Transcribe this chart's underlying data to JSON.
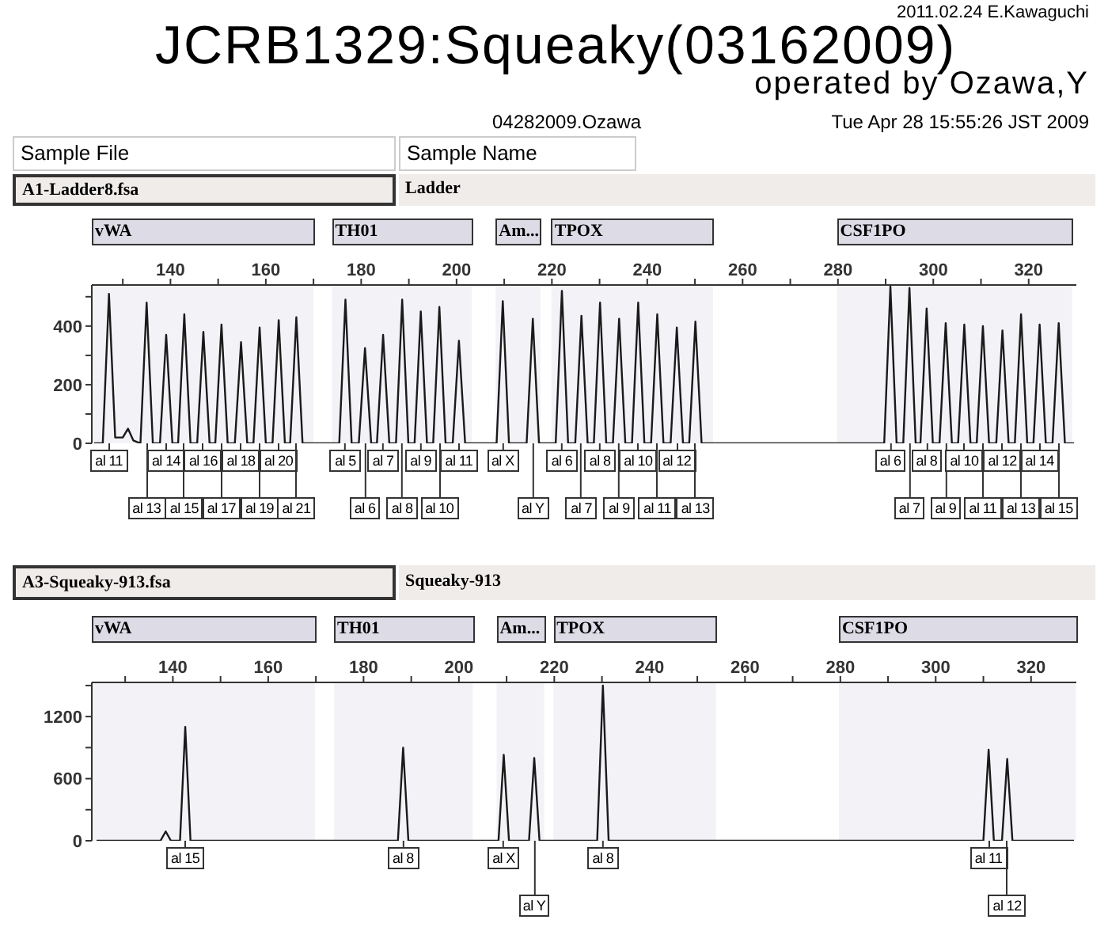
{
  "chart_data": [
    {
      "type": "line",
      "title": "JCRB1329:Squeaky(03162009)",
      "subtitle": "operated by Ozawa,Y",
      "annotations": [
        "2011.02.24 E.Kawaguchi",
        "04282009.Ozawa",
        "Tue Apr 28 15:55:26 JST 2009",
        "Sample File",
        "Sample Name",
        "A1-Ladder8.fsa",
        "Ladder",
        {
          "text": "al 11",
          "x": 127.1,
          "y": 0
        },
        {
          "text": "al 13",
          "x": 135.0,
          "y": 0
        },
        {
          "text": "al 14",
          "x": 139.1,
          "y": 0
        },
        {
          "text": "al 15",
          "x": 142.9,
          "y": 0
        },
        {
          "text": "al 16",
          "x": 146.9,
          "y": 0
        },
        {
          "text": "al 17",
          "x": 150.7,
          "y": 0
        },
        {
          "text": "al 18",
          "x": 154.8,
          "y": 0
        },
        {
          "text": "al 19",
          "x": 158.7,
          "y": 0
        },
        {
          "text": "al 20",
          "x": 162.7,
          "y": 0
        },
        {
          "text": "al 21",
          "x": 166.4,
          "y": 0
        },
        {
          "text": "al 5",
          "x": 176.7,
          "y": 0
        },
        {
          "text": "al 6",
          "x": 180.8,
          "y": 0
        },
        {
          "text": "al 7",
          "x": 184.6,
          "y": 0
        },
        {
          "text": "al 8",
          "x": 188.6,
          "y": 0
        },
        {
          "text": "al 9",
          "x": 192.5,
          "y": 0
        },
        {
          "text": "al 10",
          "x": 196.4,
          "y": 0
        },
        {
          "text": "al 11",
          "x": 200.5,
          "y": 0
        },
        {
          "text": "al X",
          "x": 209.7,
          "y": 0
        },
        {
          "text": "al Y",
          "x": 216.0,
          "y": 0
        },
        {
          "text": "al 6",
          "x": 222.1,
          "y": 0
        },
        {
          "text": "al 7",
          "x": 226.2,
          "y": 0
        },
        {
          "text": "al 8",
          "x": 230.1,
          "y": 0
        },
        {
          "text": "al 9",
          "x": 234.1,
          "y": 0
        },
        {
          "text": "al 10",
          "x": 238.1,
          "y": 0
        },
        {
          "text": "al 11",
          "x": 242.1,
          "y": 0
        },
        {
          "text": "al 12",
          "x": 246.2,
          "y": 0
        },
        {
          "text": "al 13",
          "x": 250.1,
          "y": 0
        },
        {
          "text": "al 6",
          "x": 291.0,
          "y": 0
        },
        {
          "text": "al 7",
          "x": 295.0,
          "y": 0
        },
        {
          "text": "al 8",
          "x": 298.6,
          "y": 0
        },
        {
          "text": "al 9",
          "x": 302.6,
          "y": 0
        },
        {
          "text": "al 10",
          "x": 306.5,
          "y": 0
        },
        {
          "text": "al 11",
          "x": 310.4,
          "y": 0
        },
        {
          "text": "al 12",
          "x": 314.5,
          "y": 0
        },
        {
          "text": "al 13",
          "x": 318.4,
          "y": 0
        },
        {
          "text": "al 14",
          "x": 322.3,
          "y": 0
        },
        {
          "text": "al 15",
          "x": 326.3,
          "y": 0
        }
      ],
      "series": [
        {
          "color": "#1a1a1a",
          "x": [
            124,
            125.8,
            127.1,
            128.4,
            130.0,
            131.1,
            132.2,
            133.7,
            135.0,
            136.3,
            137.8,
            139.1,
            140.4,
            141.6,
            142.9,
            144.2,
            145.6,
            146.9,
            148.2,
            149.4,
            150.7,
            152.0,
            153.5,
            154.8,
            156.1,
            157.4,
            158.7,
            160.0,
            161.4,
            162.7,
            164.0,
            165.1,
            166.4,
            167.7,
            175.4,
            176.7,
            178.0,
            179.5,
            180.8,
            182.1,
            183.3,
            184.6,
            185.9,
            187.3,
            188.6,
            189.9,
            191.2,
            192.5,
            193.8,
            195.1,
            196.4,
            197.7,
            199.2,
            200.5,
            201.8,
            208.4,
            209.7,
            211.0,
            214.7,
            216.0,
            217.3,
            220.8,
            222.1,
            223.4,
            224.9,
            226.2,
            227.5,
            228.8,
            230.1,
            231.4,
            232.8,
            234.1,
            235.4,
            236.8,
            238.1,
            239.4,
            240.8,
            242.1,
            243.4,
            244.9,
            246.2,
            247.5,
            248.8,
            250.1,
            251.4,
            289.7,
            291.0,
            292.3,
            293.7,
            295.0,
            296.3,
            297.3,
            298.6,
            299.9,
            301.3,
            302.6,
            303.9,
            305.2,
            306.5,
            307.8,
            309.1,
            310.4,
            311.7,
            313.2,
            314.5,
            315.8,
            317.1,
            318.4,
            319.7,
            321.0,
            322.3,
            323.6,
            325.0,
            326.3,
            327.6,
            329.5
          ],
          "values": [
            0,
            0,
            510,
            20,
            20,
            50,
            10,
            0,
            480,
            0,
            0,
            370,
            0,
            0,
            440,
            0,
            0,
            380,
            0,
            0,
            405,
            0,
            0,
            345,
            0,
            0,
            395,
            0,
            0,
            420,
            0,
            0,
            430,
            0,
            0,
            490,
            0,
            0,
            325,
            0,
            0,
            370,
            0,
            0,
            490,
            0,
            0,
            450,
            0,
            0,
            465,
            0,
            0,
            350,
            0,
            0,
            485,
            0,
            0,
            425,
            0,
            0,
            520,
            0,
            0,
            435,
            0,
            0,
            480,
            0,
            0,
            425,
            0,
            0,
            480,
            0,
            0,
            440,
            0,
            0,
            395,
            0,
            0,
            415,
            0,
            0,
            535,
            0,
            0,
            530,
            0,
            0,
            460,
            0,
            0,
            410,
            0,
            0,
            405,
            0,
            0,
            400,
            0,
            0,
            385,
            0,
            0,
            440,
            0,
            0,
            405,
            0,
            0,
            410,
            0,
            0
          ]
        }
      ],
      "xlim": [
        123.5,
        330
      ],
      "xticks": [
        {
          "value": 130,
          "label": null
        },
        140,
        {
          "value": 150,
          "label": null
        },
        160,
        {
          "value": 170,
          "label": null
        },
        180,
        {
          "value": 190,
          "label": null
        },
        200,
        {
          "value": 210,
          "label": null
        },
        220,
        {
          "value": 230,
          "label": null
        },
        240,
        {
          "value": 250,
          "label": null
        },
        260,
        {
          "value": 270,
          "label": null
        },
        280,
        {
          "value": 290,
          "label": null
        },
        300,
        {
          "value": 310,
          "label": null
        },
        320
      ],
      "ylim": [
        0,
        540
      ],
      "yticks": [
        0,
        {
          "value": 100,
          "label": null
        },
        200,
        {
          "value": 300,
          "label": null
        },
        400,
        {
          "value": 500,
          "label": null
        }
      ],
      "bands": [
        {
          "axis": "x",
          "from": 123.5,
          "to": 170,
          "label": "vWA"
        },
        {
          "axis": "x",
          "from": 173.9,
          "to": 203.2,
          "label": "TH01"
        },
        {
          "axis": "x",
          "from": 208.2,
          "to": 217.6,
          "label": "Am..."
        },
        {
          "axis": "x",
          "from": 219.9,
          "to": 253.8,
          "label": "TPOX"
        },
        {
          "axis": "x",
          "from": 279.8,
          "to": 329.1,
          "label": "CSF1PO"
        }
      ]
    },
    {
      "type": "line",
      "annotations": [
        "A3-Squeaky-913.fsa",
        "Squeaky-913",
        {
          "text": "al 15",
          "x": 142.6,
          "y": 0
        },
        {
          "text": "al 8",
          "x": 188.3,
          "y": 0
        },
        {
          "text": "al X",
          "x": 209.4,
          "y": 0
        },
        {
          "text": "al Y",
          "x": 215.8,
          "y": 0
        },
        {
          "text": "al 8",
          "x": 230.2,
          "y": 0
        },
        {
          "text": "al 11",
          "x": 311.1,
          "y": 0
        },
        {
          "text": "al 12",
          "x": 315.0,
          "y": 0
        }
      ],
      "series": [
        {
          "color": "#1a1a1a",
          "x": [
            124,
            137.4,
            138.5,
            139.6,
            141.5,
            142.6,
            143.7,
            187.2,
            188.3,
            189.4,
            208.3,
            209.4,
            210.5,
            214.7,
            215.8,
            216.9,
            229.0,
            230.2,
            231.4,
            310.0,
            311.1,
            312.2,
            313.9,
            315.0,
            316.1,
            329
          ],
          "values": [
            0,
            0,
            90,
            0,
            0,
            1100,
            0,
            0,
            900,
            0,
            0,
            830,
            0,
            0,
            800,
            0,
            0,
            1500,
            0,
            0,
            880,
            0,
            0,
            790,
            0,
            0
          ]
        }
      ],
      "xlim": [
        123,
        329.5
      ],
      "xticks": [
        {
          "value": 130,
          "label": null
        },
        140,
        {
          "value": 150,
          "label": null
        },
        160,
        {
          "value": 170,
          "label": null
        },
        180,
        {
          "value": 190,
          "label": null
        },
        200,
        {
          "value": 210,
          "label": null
        },
        220,
        {
          "value": 230,
          "label": null
        },
        240,
        {
          "value": 250,
          "label": null
        },
        260,
        {
          "value": 270,
          "label": null
        },
        280,
        {
          "value": 290,
          "label": null
        },
        300,
        {
          "value": 310,
          "label": null
        },
        320
      ],
      "ylim": [
        0,
        1530
      ],
      "yticks": [
        0,
        {
          "value": 300,
          "label": null
        },
        600,
        {
          "value": 900,
          "label": null
        },
        1200,
        {
          "value": 1500,
          "label": null
        }
      ],
      "bands": [
        {
          "axis": "x",
          "from": 123,
          "to": 169.8,
          "label": "vWA"
        },
        {
          "axis": "x",
          "from": 173.8,
          "to": 202.9,
          "label": "TH01"
        },
        {
          "axis": "x",
          "from": 207.9,
          "to": 217.9,
          "label": "Am..."
        },
        {
          "axis": "x",
          "from": 219.8,
          "to": 253.9,
          "label": "TPOX"
        },
        {
          "axis": "x",
          "from": 279.7,
          "to": 329.4,
          "label": "CSF1PO"
        }
      ]
    }
  ]
}
